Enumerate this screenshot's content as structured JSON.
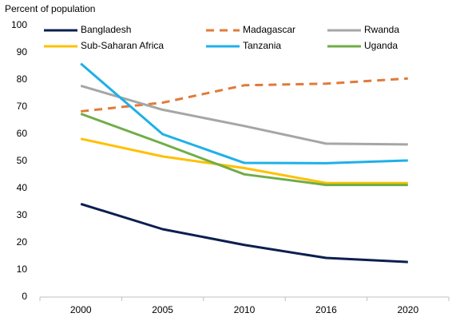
{
  "chart_data": {
    "type": "line",
    "y_axis_label": "Percent of population",
    "categories": [
      "2000",
      "2005",
      "2010",
      "2016",
      "2020"
    ],
    "series": [
      {
        "name": "Bangladesh",
        "color": "#0b1f4f",
        "values": [
          34.3,
          25,
          19.2,
          14.4,
          12.9
        ]
      },
      {
        "name": "Madagascar",
        "color": "#e07b39",
        "dashed": true,
        "values": [
          68.4,
          71.6,
          78,
          78.6,
          80.5
        ]
      },
      {
        "name": "Rwanda",
        "color": "#a6a6a6",
        "values": [
          77.8,
          69,
          63,
          56.5,
          56.2
        ]
      },
      {
        "name": "Sub-Saharan Africa",
        "color": "#ffc000",
        "values": [
          58.3,
          51.8,
          47.5,
          42,
          42
        ]
      },
      {
        "name": "Tanzania",
        "color": "#1fb0e8",
        "values": [
          86,
          60,
          49.4,
          49.3,
          50.3
        ]
      },
      {
        "name": "Uganda",
        "color": "#70ad47",
        "values": [
          67.5,
          56.5,
          45.2,
          41.3,
          41.3
        ]
      }
    ],
    "ylim": [
      0,
      100
    ],
    "yticks": [
      0,
      10,
      20,
      30,
      40,
      50,
      60,
      70,
      80,
      90,
      100
    ],
    "grid": false,
    "legend": "top"
  }
}
